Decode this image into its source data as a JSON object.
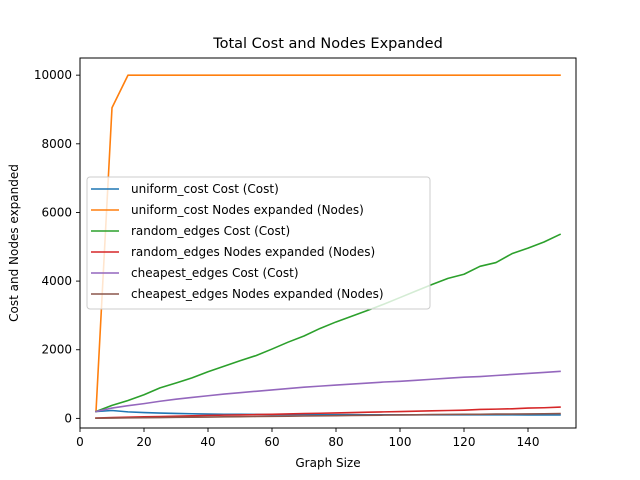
{
  "chart_data": {
    "type": "line",
    "title": "Total Cost and Nodes Expanded",
    "xlabel": "Graph Size",
    "ylabel": "Cost and Nodes expanded",
    "xlim": [
      0,
      155
    ],
    "ylim": [
      -280,
      10500
    ],
    "xticks": [
      0,
      20,
      40,
      60,
      80,
      100,
      120,
      140
    ],
    "yticks": [
      0,
      2000,
      4000,
      6000,
      8000,
      10000
    ],
    "grid": false,
    "legend_position": "center-left",
    "x": [
      5,
      10,
      15,
      20,
      25,
      30,
      35,
      40,
      45,
      50,
      55,
      60,
      65,
      70,
      75,
      80,
      85,
      90,
      95,
      100,
      105,
      110,
      115,
      120,
      125,
      130,
      135,
      140,
      145,
      150
    ],
    "series": [
      {
        "name": "uniform_cost Cost (Cost)",
        "color": "#1f77b4",
        "values": [
          200,
          230,
          190,
          170,
          155,
          145,
          135,
          125,
          120,
          118,
          115,
          112,
          110,
          110,
          108,
          108,
          107,
          106,
          106,
          105,
          105,
          104,
          104,
          104,
          103,
          103,
          103,
          102,
          102,
          102
        ]
      },
      {
        "name": "uniform_cost Nodes expanded (Nodes)",
        "color": "#ff7f0e",
        "values": [
          200,
          9050,
          10000,
          10000,
          10000,
          10000,
          10000,
          10000,
          10000,
          10000,
          10000,
          10000,
          10000,
          10000,
          10000,
          10000,
          10000,
          10000,
          10000,
          10000,
          10000,
          10000,
          10000,
          10000,
          10000,
          10000,
          10000,
          10000,
          10000,
          10000
        ]
      },
      {
        "name": "random_edges Cost (Cost)",
        "color": "#2ca02c",
        "values": [
          200,
          380,
          520,
          690,
          890,
          1030,
          1180,
          1360,
          1520,
          1680,
          1830,
          2020,
          2220,
          2400,
          2620,
          2810,
          2980,
          3150,
          3330,
          3520,
          3710,
          3900,
          4080,
          4200,
          4430,
          4540,
          4800,
          4960,
          5140,
          5360
        ]
      },
      {
        "name": "random_edges Nodes expanded (Nodes)",
        "color": "#d62728",
        "values": [
          10,
          25,
          35,
          45,
          55,
          65,
          75,
          85,
          95,
          100,
          110,
          120,
          130,
          140,
          150,
          160,
          170,
          180,
          190,
          200,
          210,
          220,
          230,
          240,
          260,
          270,
          280,
          300,
          310,
          330
        ]
      },
      {
        "name": "cheapest_edges Cost (Cost)",
        "color": "#9467bd",
        "values": [
          200,
          300,
          370,
          430,
          500,
          560,
          610,
          660,
          710,
          750,
          790,
          830,
          870,
          910,
          940,
          970,
          1000,
          1030,
          1060,
          1080,
          1110,
          1140,
          1170,
          1200,
          1220,
          1250,
          1280,
          1310,
          1340,
          1370
        ]
      },
      {
        "name": "cheapest_edges Nodes expanded (Nodes)",
        "color": "#8c564b",
        "values": [
          5,
          10,
          15,
          20,
          25,
          30,
          35,
          40,
          45,
          50,
          55,
          60,
          65,
          70,
          75,
          80,
          85,
          90,
          95,
          100,
          105,
          110,
          115,
          118,
          120,
          125,
          128,
          130,
          135,
          140
        ]
      }
    ]
  }
}
